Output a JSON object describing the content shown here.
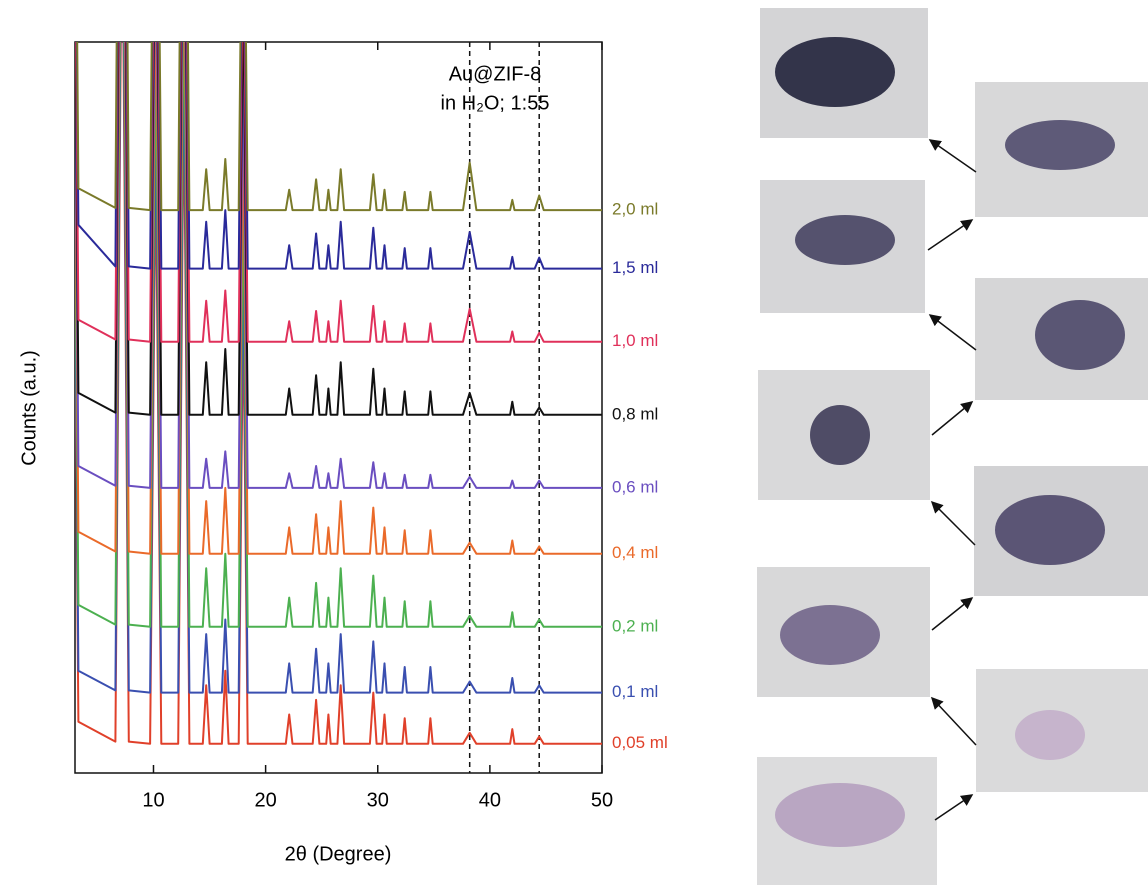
{
  "chart_data": {
    "type": "line",
    "xlabel": "2θ (Degree)",
    "ylabel": "Counts (a.u.)",
    "annotation": [
      "Au@ZIF-8",
      "in H₂O; 1:55"
    ],
    "xlim": [
      3,
      50
    ],
    "xticks": [
      10,
      20,
      30,
      40,
      50
    ],
    "ylim": [
      0,
      100
    ],
    "vlines": [
      38.2,
      44.4
    ],
    "x": [
      3,
      3.3,
      6.6,
      7.2,
      7.8,
      9.7,
      10.2,
      10.7,
      12.2,
      12.7,
      13.2,
      14.4,
      14.7,
      15.0,
      16.1,
      16.4,
      16.7,
      17.6,
      18.0,
      18.4,
      21.8,
      22.1,
      22.4,
      24.2,
      24.5,
      24.8,
      25.4,
      25.6,
      25.8,
      26.4,
      26.7,
      27.0,
      29.3,
      29.6,
      29.9,
      30.4,
      30.6,
      30.8,
      32.2,
      32.4,
      32.6,
      34.5,
      34.7,
      34.9,
      37.6,
      38.2,
      38.8,
      41.8,
      42.0,
      42.2,
      44.0,
      44.4,
      44.8,
      50
    ],
    "series": [
      {
        "name": "0,05 ml",
        "color": "#e0402a",
        "values": [
          64,
          7,
          4.3,
          124,
          4.3,
          4,
          84,
          4,
          4,
          94,
          4,
          4,
          12,
          4,
          4,
          14,
          4,
          4,
          64,
          4,
          4,
          8,
          4,
          4,
          10,
          4,
          4,
          8,
          4,
          4,
          12,
          4,
          4,
          11,
          4,
          4,
          8,
          4,
          4,
          7.5,
          4,
          4,
          7.5,
          4,
          4,
          5.5,
          4,
          4,
          6,
          4,
          4,
          5,
          4,
          4
        ]
      },
      {
        "name": "0,1 ml",
        "color": "#3a4fb0",
        "values": [
          71,
          14,
          11.3,
          131,
          11.3,
          11,
          91,
          11,
          11,
          101,
          11,
          11,
          19,
          11,
          11,
          21,
          11,
          11,
          71,
          11,
          11,
          15,
          11,
          11,
          17,
          11,
          11,
          15,
          11,
          11,
          19,
          11,
          11,
          18,
          11,
          11,
          15,
          11,
          11,
          14.5,
          11,
          11,
          14.5,
          11,
          11,
          12.5,
          11,
          11,
          13,
          11,
          11,
          12,
          11,
          11
        ]
      },
      {
        "name": "0,2 ml",
        "color": "#4cb050",
        "values": [
          80,
          23,
          20.3,
          140,
          20.3,
          20,
          100,
          20,
          20,
          110,
          20,
          20,
          28,
          20,
          20,
          30,
          20,
          20,
          80,
          20,
          20,
          24,
          20,
          20,
          26,
          20,
          20,
          24,
          20,
          20,
          28,
          20,
          20,
          27,
          20,
          20,
          24,
          20,
          20,
          23.5,
          20,
          20,
          23.5,
          20,
          20,
          21.5,
          20,
          20,
          22,
          20,
          20,
          21,
          20,
          20
        ]
      },
      {
        "name": "0,4 ml",
        "color": "#ea6a2a",
        "values": [
          90,
          33,
          30.3,
          150,
          30.3,
          30,
          110,
          30,
          30,
          120,
          30,
          30,
          37.2,
          30,
          30,
          39,
          30,
          30,
          90,
          30,
          30,
          33.6,
          30,
          30,
          35.4,
          30,
          30,
          33.6,
          30,
          30,
          37.2,
          30,
          30,
          36.3,
          30,
          30,
          33.6,
          30,
          30,
          33.2,
          30,
          30,
          33.2,
          30,
          30,
          31.5,
          30,
          30,
          31.8,
          30,
          30,
          31,
          30,
          30
        ]
      },
      {
        "name": "0,6 ml",
        "color": "#6a4ec0",
        "values": [
          99,
          42,
          39.3,
          159,
          39.3,
          39,
          119,
          39,
          39,
          129,
          39,
          39,
          43,
          39,
          39,
          44,
          39,
          39,
          99,
          39,
          39,
          41,
          39,
          39,
          42,
          39,
          39,
          41,
          39,
          39,
          43,
          39,
          39,
          42.5,
          39,
          39,
          41,
          39,
          39,
          40.8,
          39,
          39,
          40.8,
          39,
          39,
          40.5,
          39,
          39,
          40,
          39,
          39,
          40,
          39,
          39
        ]
      },
      {
        "name": "0,8 ml",
        "color": "#111111",
        "values": [
          109,
          52,
          49.3,
          169,
          49.3,
          49,
          129,
          49,
          49,
          139,
          49,
          49,
          56.2,
          49,
          49,
          58,
          49,
          49,
          109,
          49,
          49,
          52.6,
          49,
          49,
          54.4,
          49,
          49,
          52.6,
          49,
          49,
          56.2,
          49,
          49,
          55.3,
          49,
          49,
          52.6,
          49,
          49,
          52.2,
          49,
          49,
          52.2,
          49,
          49,
          52,
          49,
          49,
          50.8,
          49,
          49,
          50,
          49,
          49
        ]
      },
      {
        "name": "1,0 ml",
        "color": "#e0305a",
        "values": [
          119,
          62,
          59.3,
          179,
          59.3,
          59,
          139,
          59,
          59,
          149,
          59,
          59,
          64.6,
          59,
          59,
          66,
          59,
          59,
          119,
          59,
          59,
          61.8,
          59,
          59,
          63.2,
          59,
          59,
          61.8,
          59,
          59,
          64.6,
          59,
          59,
          63.9,
          59,
          59,
          61.8,
          59,
          59,
          61.5,
          59,
          59,
          61.5,
          59,
          59,
          63.5,
          59,
          59,
          60.4,
          59,
          59,
          60.2,
          59,
          59
        ]
      },
      {
        "name": "1,5 ml",
        "color": "#2a2a9a",
        "values": [
          129,
          75,
          69.3,
          189,
          69.3,
          69,
          149,
          69,
          69,
          159,
          69,
          69,
          75.4,
          69,
          69,
          77,
          69,
          69,
          129,
          69,
          69,
          72.2,
          69,
          69,
          73.8,
          69,
          69,
          72.2,
          69,
          69,
          75.4,
          69,
          69,
          74.6,
          69,
          69,
          72.2,
          69,
          69,
          71.8,
          69,
          69,
          71.8,
          69,
          69,
          74,
          69,
          69,
          70.6,
          69,
          69,
          70.5,
          69,
          69
        ]
      },
      {
        "name": "2,0 ml",
        "color": "#7a7a2a",
        "values": [
          137,
          80,
          77.3,
          197,
          77.3,
          77,
          157,
          77,
          77,
          167,
          77,
          77,
          82.6,
          77,
          77,
          84,
          77,
          77,
          137,
          77,
          77,
          79.8,
          77,
          77,
          81.2,
          77,
          77,
          79.8,
          77,
          77,
          82.6,
          77,
          77,
          81.9,
          77,
          77,
          79.8,
          77,
          77,
          79.5,
          77,
          77,
          79.5,
          77,
          77,
          83.5,
          77,
          77,
          78.4,
          77,
          77,
          79,
          77,
          77
        ]
      }
    ]
  }
}
